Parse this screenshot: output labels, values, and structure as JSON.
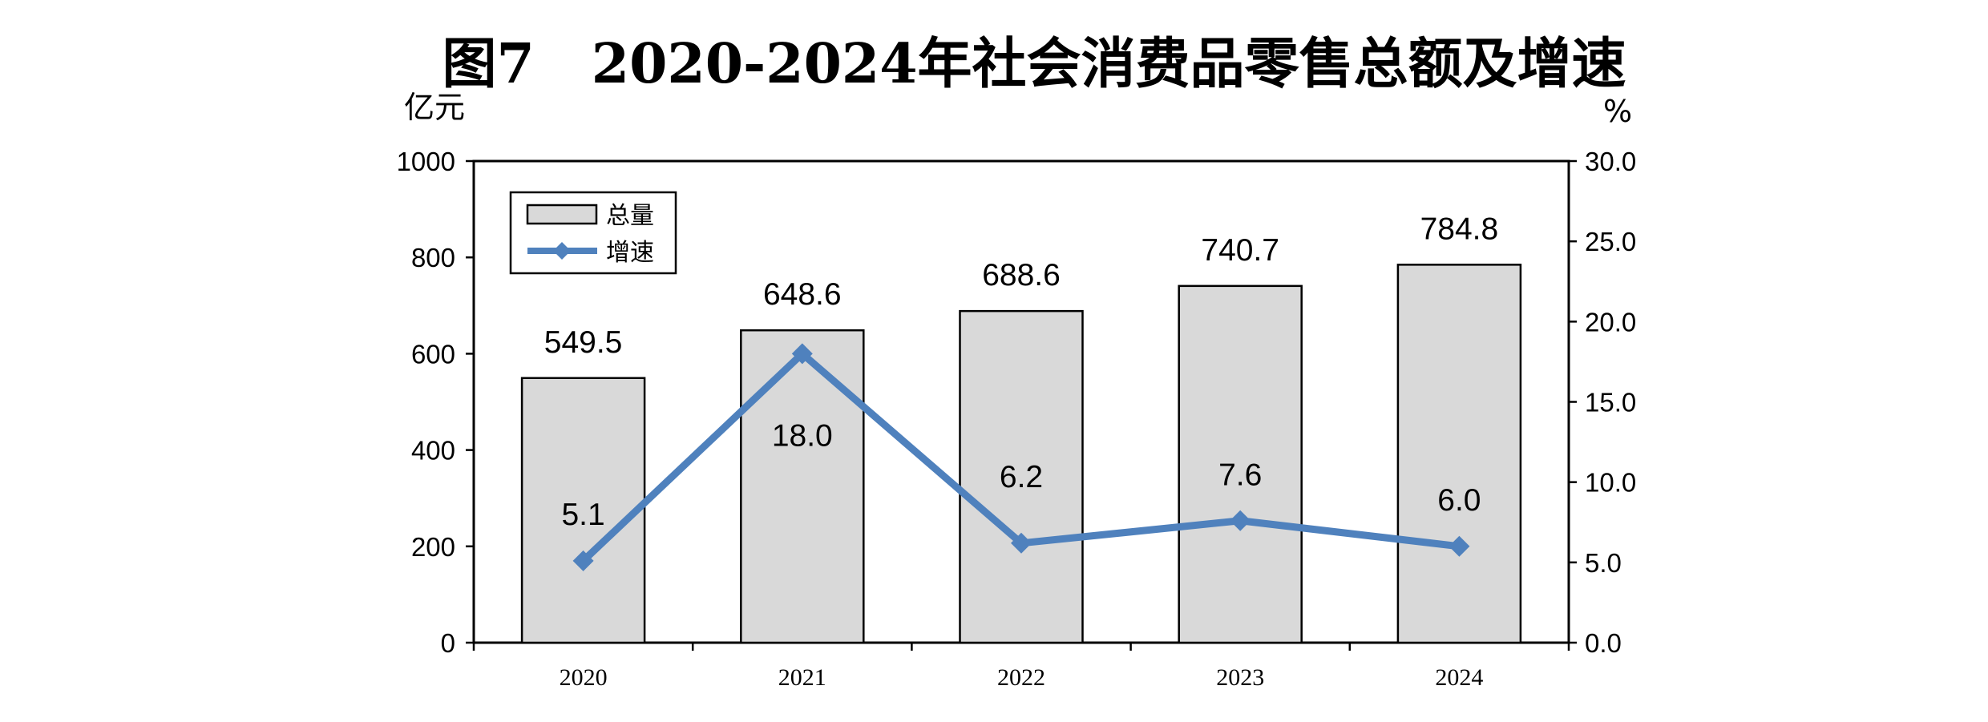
{
  "chart_data": {
    "type": "bar",
    "title": "图7 2020-2024年社会消费品零售总额及增速",
    "categories": [
      "2020",
      "2021",
      "2022",
      "2023",
      "2024"
    ],
    "series": [
      {
        "name": "总量",
        "type": "bar",
        "axis": "left",
        "values": [
          549.5,
          648.6,
          688.6,
          740.7,
          784.8
        ],
        "labels": [
          "549.5",
          "648.6",
          "688.6",
          "740.7",
          "784.8"
        ]
      },
      {
        "name": "增速",
        "type": "line",
        "axis": "right",
        "values": [
          5.1,
          18.0,
          6.2,
          7.6,
          6.0
        ],
        "labels": [
          "5.1",
          "18.0",
          "6.2",
          "7.6",
          "6.0"
        ]
      }
    ],
    "ylabel_left": "亿元",
    "ylabel_right": "%",
    "ylim_left": [
      0,
      1000
    ],
    "ylim_right": [
      0,
      30
    ],
    "yticks_left": [
      "0",
      "200",
      "400",
      "600",
      "800",
      "1000"
    ],
    "yticks_right": [
      "0.0",
      "5.0",
      "10.0",
      "15.0",
      "20.0",
      "25.0",
      "30.0"
    ],
    "legend_position": "top-left",
    "grid": false,
    "colors": {
      "bar_fill": "#d9d9d9",
      "bar_stroke": "#000000",
      "line": "#4f81bd"
    }
  }
}
